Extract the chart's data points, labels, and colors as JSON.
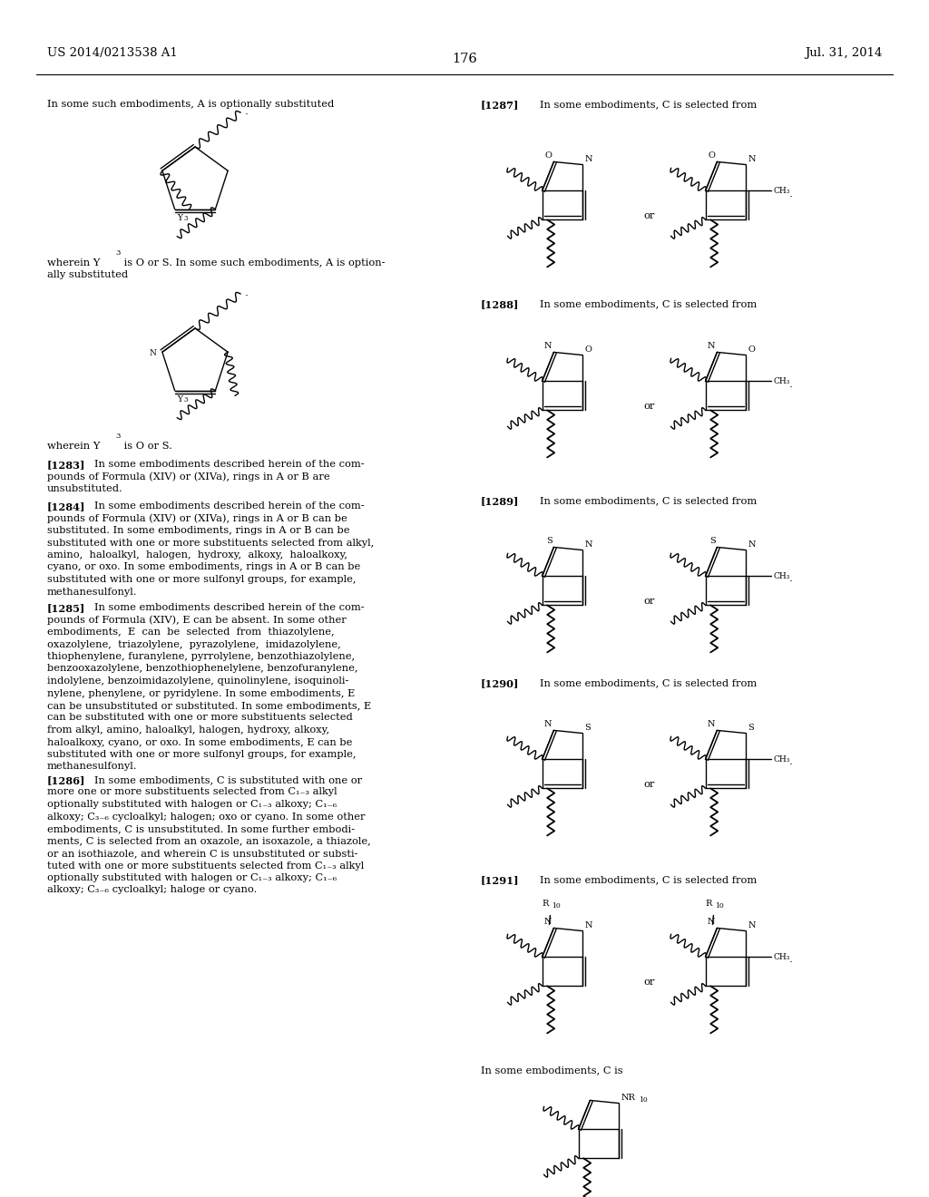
{
  "page_header_left": "US 2014/0213538 A1",
  "page_header_right": "Jul. 31, 2014",
  "page_number": "176",
  "background_color": "#ffffff",
  "text_color": "#000000",
  "font_size_header": 9.5,
  "font_size_body": 8.2,
  "font_size_page_num": 10.5
}
